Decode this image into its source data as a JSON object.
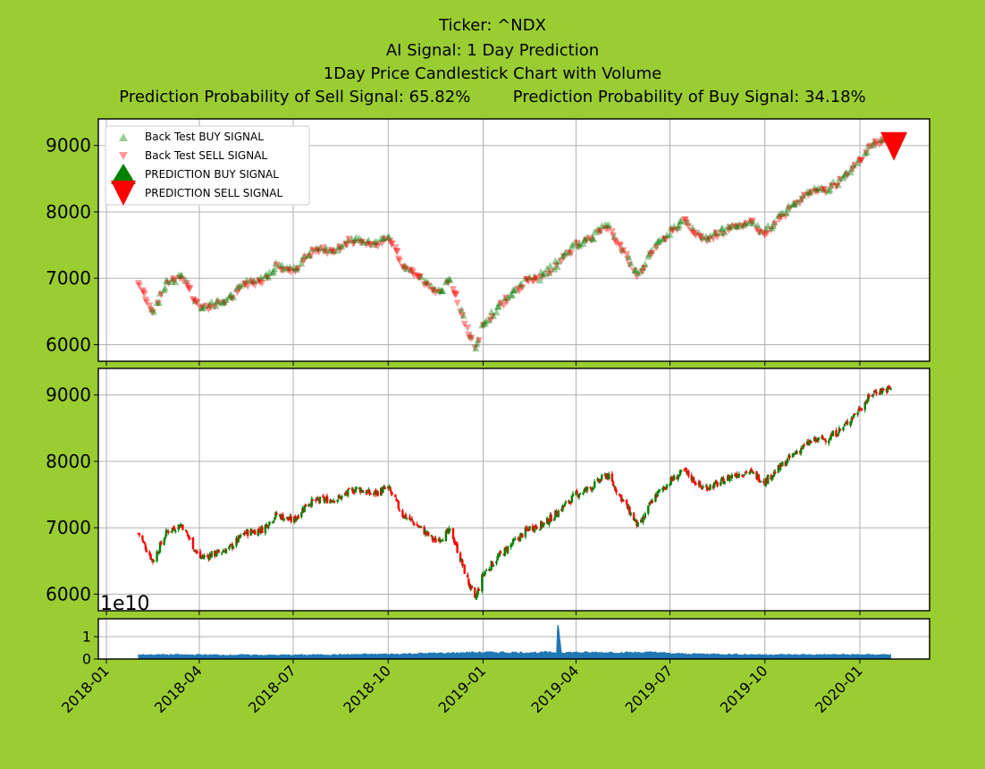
{
  "header": {
    "ticker_line": "Ticker: ^NDX",
    "signal_line": "AI Signal: 1 Day Prediction",
    "chart_line": "1Day Price Candlestick Chart with Volume",
    "sell_prob": "Prediction Probability of Sell Signal: 65.82%",
    "buy_prob": "Prediction Probability of Buy Signal: 34.18%"
  },
  "legend": {
    "items": [
      "Back Test BUY SIGNAL",
      "Back Test SELL SIGNAL",
      "PREDICTION BUY SIGNAL",
      "PREDICTION SELL SIGNAL"
    ]
  },
  "volume_exponent": "1e10",
  "colors": {
    "background": "#9acd32",
    "buy": "#008000",
    "sell": "#ff0000",
    "volume": "#1f77b4",
    "grid": "#b0b0b0"
  },
  "chart_data": [
    {
      "type": "scatter",
      "panel": "signals",
      "ylim": [
        5750,
        9400
      ],
      "yticks": [
        6000,
        7000,
        8000,
        9000
      ],
      "grid": true,
      "legend_position": "top-left",
      "series": [
        {
          "name": "Back Test BUY SIGNAL",
          "marker": "triangle-up",
          "color": "#008000"
        },
        {
          "name": "Back Test SELL SIGNAL",
          "marker": "triangle-down",
          "color": "#ff0000"
        },
        {
          "name": "PREDICTION BUY SIGNAL",
          "marker": "triangle-up-large",
          "color": "#008000",
          "points": []
        },
        {
          "name": "PREDICTION SELL SIGNAL",
          "marker": "triangle-down-large",
          "color": "#ff0000",
          "points": [
            {
              "x": "2020-02-03",
              "y": 9000
            }
          ]
        }
      ]
    },
    {
      "type": "candlestick",
      "panel": "price",
      "ylim": [
        5750,
        9400
      ],
      "yticks": [
        6000,
        7000,
        8000,
        9000
      ],
      "grid": true,
      "x_dates": [
        "2018-02-01",
        "2018-02-15",
        "2018-03-01",
        "2018-03-15",
        "2018-04-01",
        "2018-04-15",
        "2018-05-01",
        "2018-05-15",
        "2018-06-01",
        "2018-06-15",
        "2018-07-01",
        "2018-07-15",
        "2018-08-01",
        "2018-08-15",
        "2018-09-01",
        "2018-09-15",
        "2018-10-01",
        "2018-10-15",
        "2018-11-01",
        "2018-11-15",
        "2018-12-01",
        "2018-12-15",
        "2018-12-24",
        "2019-01-01",
        "2019-01-15",
        "2019-02-01",
        "2019-02-15",
        "2019-03-01",
        "2019-03-15",
        "2019-04-01",
        "2019-04-15",
        "2019-05-01",
        "2019-05-15",
        "2019-06-01",
        "2019-06-15",
        "2019-07-01",
        "2019-07-15",
        "2019-08-01",
        "2019-08-15",
        "2019-09-01",
        "2019-09-15",
        "2019-10-01",
        "2019-10-15",
        "2019-11-01",
        "2019-11-15",
        "2019-12-01",
        "2019-12-15",
        "2020-01-01",
        "2020-01-15",
        "2020-02-01"
      ],
      "close": [
        6920,
        6500,
        6950,
        7050,
        6550,
        6600,
        6700,
        6920,
        6980,
        7200,
        7100,
        7380,
        7420,
        7450,
        7600,
        7500,
        7600,
        7200,
        7000,
        6800,
        6950,
        6300,
        5900,
        6300,
        6550,
        6800,
        7000,
        7050,
        7250,
        7500,
        7600,
        7800,
        7450,
        7000,
        7450,
        7700,
        7850,
        7600,
        7650,
        7800,
        7850,
        7700,
        7900,
        8150,
        8300,
        8350,
        8500,
        8800,
        9050,
        9100
      ],
      "xtick_labels": [
        "2018-01",
        "2018-04",
        "2018-07",
        "2018-10",
        "2019-01",
        "2019-04",
        "2019-07",
        "2019-10",
        "2020-01"
      ]
    },
    {
      "type": "area",
      "panel": "volume",
      "ylim": [
        0,
        1.8
      ],
      "yticks": [
        0,
        1
      ],
      "y_unit_multiplier": "1e10",
      "series": [
        {
          "x_dates": [
            "2018-02-01",
            "2018-06-15",
            "2018-10-01",
            "2018-12-21",
            "2019-03-15",
            "2019-06-28",
            "2019-10-01",
            "2020-01-02",
            "2020-01-31"
          ],
          "values": [
            0.2,
            0.18,
            0.22,
            0.3,
            1.5,
            0.25,
            0.2,
            0.2,
            0.2
          ]
        }
      ]
    }
  ]
}
